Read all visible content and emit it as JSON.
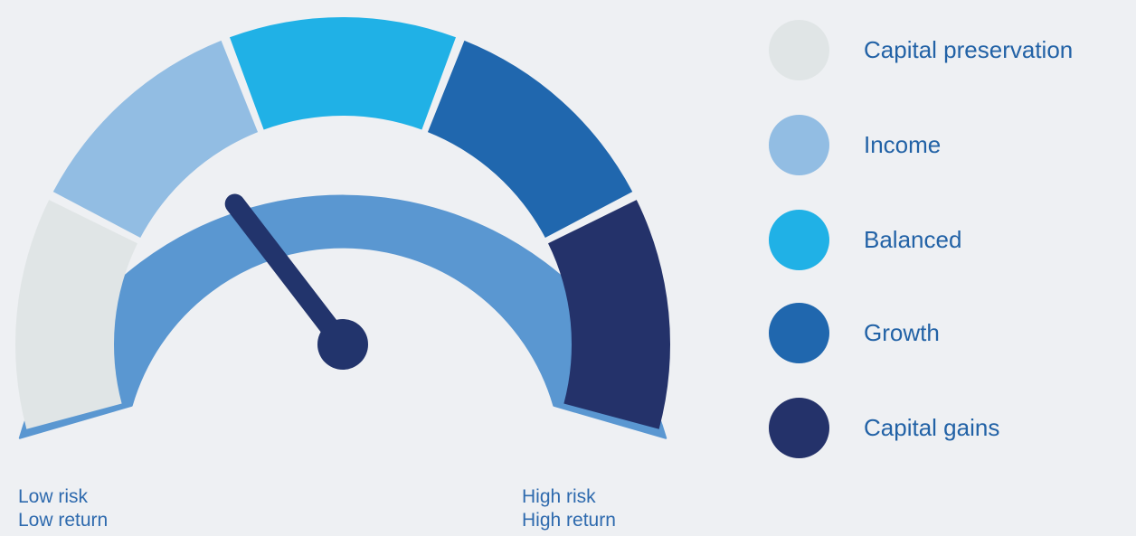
{
  "colors": {
    "background": "#eef0f3",
    "outline": "#5a97d1",
    "needle": "#22346c",
    "label_text": "#2e6aae"
  },
  "gauge": {
    "needle_level": 0.25,
    "segments": [
      {
        "name": "Capital preservation",
        "color": "#e0e5e6"
      },
      {
        "name": "Income",
        "color": "#92bde3"
      },
      {
        "name": "Balanced",
        "color": "#20b1e6"
      },
      {
        "name": "Growth",
        "color": "#2067ae"
      },
      {
        "name": "Capital gains",
        "color": "#24326a"
      }
    ],
    "low_label": {
      "line1": "Low risk",
      "line2": "Low return"
    },
    "high_label": {
      "line1": "High risk",
      "line2": "High return"
    }
  },
  "legend": {
    "items": [
      {
        "label": "Capital preservation",
        "color": "#e0e5e6"
      },
      {
        "label": "Income",
        "color": "#92bde3"
      },
      {
        "label": "Balanced",
        "color": "#20b1e6"
      },
      {
        "label": "Growth",
        "color": "#2067ae"
      },
      {
        "label": "Capital gains",
        "color": "#24326a"
      }
    ]
  }
}
